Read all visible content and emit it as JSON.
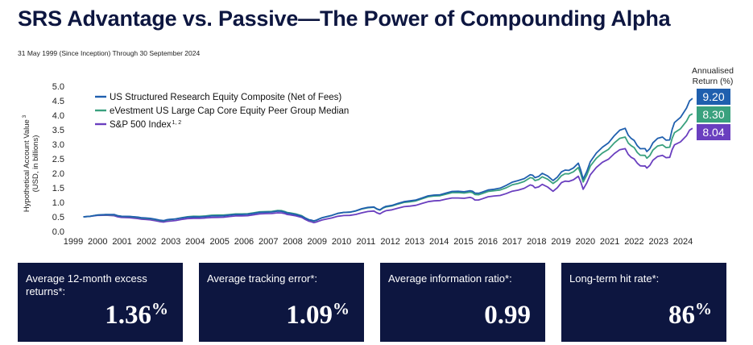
{
  "title": "SRS Advantage vs. Passive—The Power of Compounding Alpha",
  "subtitle": "31 May 1999 (Since Inception) Through 30 September 2024",
  "chart_data": {
    "type": "line",
    "ylabel_line1": "Hypothetical Account Value",
    "ylabel_sup": "3",
    "ylabel_line2": "(USD, in billions)",
    "ylim": [
      0.0,
      5.0
    ],
    "yticks": [
      "0.0",
      "0.5",
      "1.0",
      "1.5",
      "2.0",
      "2.5",
      "3.0",
      "3.5",
      "4.0",
      "4.5",
      "5.0"
    ],
    "xticks": [
      "1999",
      "2000",
      "2001",
      "2002",
      "2003",
      "2004",
      "2005",
      "2006",
      "2007",
      "2008",
      "2009",
      "2010",
      "2011",
      "2012",
      "2013",
      "2014",
      "2015",
      "2016",
      "2017",
      "2018",
      "2019",
      "2020",
      "2021",
      "2022",
      "2023",
      "2024"
    ],
    "grid": false,
    "legend_position": "top-left",
    "returns_header": "Annualised Return (%)",
    "returns_header_line1": "Annualised",
    "returns_header_line2": "Return (%)",
    "series": [
      {
        "name": "US Structured Research Equity Composite (Net of Fees)",
        "legend_sup": "",
        "color": "#1f5fae",
        "annualised_return": "9.20",
        "x": [
          1999.42,
          2000.0,
          2000.7,
          2001.0,
          2001.7,
          2002.0,
          2002.4,
          2002.75,
          2003.0,
          2003.5,
          2004.0,
          2004.5,
          2005.0,
          2005.5,
          2006.0,
          2006.5,
          2007.0,
          2007.5,
          2007.8,
          2008.0,
          2008.5,
          2008.8,
          2009.0,
          2009.2,
          2009.5,
          2010.0,
          2010.5,
          2011.0,
          2011.5,
          2011.75,
          2012.0,
          2012.5,
          2013.0,
          2013.5,
          2014.0,
          2014.5,
          2015.0,
          2015.5,
          2015.7,
          2016.0,
          2016.5,
          2017.0,
          2017.5,
          2018.0,
          2018.2,
          2018.5,
          2018.95,
          2019.3,
          2019.6,
          2020.0,
          2020.2,
          2020.5,
          2021.0,
          2021.5,
          2021.95,
          2022.2,
          2022.45,
          2022.7,
          2022.85,
          2023.1,
          2023.5,
          2023.8,
          2024.0,
          2024.5,
          2024.75
        ],
        "y": [
          0.5,
          0.56,
          0.58,
          0.52,
          0.49,
          0.46,
          0.42,
          0.37,
          0.41,
          0.46,
          0.5,
          0.51,
          0.53,
          0.56,
          0.58,
          0.62,
          0.66,
          0.7,
          0.66,
          0.62,
          0.52,
          0.4,
          0.36,
          0.42,
          0.5,
          0.62,
          0.66,
          0.78,
          0.84,
          0.74,
          0.86,
          0.96,
          1.05,
          1.15,
          1.25,
          1.32,
          1.38,
          1.4,
          1.32,
          1.35,
          1.45,
          1.58,
          1.75,
          1.95,
          1.85,
          2.0,
          1.75,
          2.05,
          2.1,
          2.35,
          1.8,
          2.4,
          2.9,
          3.3,
          3.55,
          3.2,
          2.95,
          2.85,
          2.75,
          3.05,
          3.25,
          3.15,
          3.75,
          4.25,
          4.58
        ]
      },
      {
        "name": "eVestment US Large Cap Core Equity Peer Group Median",
        "legend_sup": "",
        "color": "#3aa17e",
        "annualised_return": "8.30",
        "x": [
          1999.42,
          2000.0,
          2000.7,
          2001.0,
          2001.7,
          2002.0,
          2002.4,
          2002.75,
          2003.0,
          2003.5,
          2004.0,
          2004.5,
          2005.0,
          2005.5,
          2006.0,
          2006.5,
          2007.0,
          2007.5,
          2007.8,
          2008.0,
          2008.5,
          2008.8,
          2009.0,
          2009.2,
          2009.5,
          2010.0,
          2010.5,
          2011.0,
          2011.5,
          2011.75,
          2012.0,
          2012.5,
          2013.0,
          2013.5,
          2014.0,
          2014.5,
          2015.0,
          2015.5,
          2015.7,
          2016.0,
          2016.5,
          2017.0,
          2017.5,
          2018.0,
          2018.2,
          2018.5,
          2018.95,
          2019.3,
          2019.6,
          2020.0,
          2020.2,
          2020.5,
          2021.0,
          2021.5,
          2021.95,
          2022.2,
          2022.45,
          2022.7,
          2022.85,
          2023.1,
          2023.5,
          2023.8,
          2024.0,
          2024.5,
          2024.75
        ],
        "y": [
          0.5,
          0.56,
          0.57,
          0.52,
          0.48,
          0.45,
          0.41,
          0.36,
          0.4,
          0.47,
          0.52,
          0.53,
          0.56,
          0.58,
          0.6,
          0.64,
          0.68,
          0.72,
          0.68,
          0.64,
          0.54,
          0.4,
          0.35,
          0.42,
          0.5,
          0.62,
          0.66,
          0.77,
          0.83,
          0.73,
          0.84,
          0.94,
          1.02,
          1.12,
          1.22,
          1.28,
          1.34,
          1.35,
          1.27,
          1.3,
          1.4,
          1.5,
          1.65,
          1.85,
          1.75,
          1.88,
          1.65,
          1.92,
          1.98,
          2.2,
          1.7,
          2.25,
          2.7,
          3.05,
          3.25,
          2.95,
          2.72,
          2.62,
          2.52,
          2.8,
          2.98,
          2.9,
          3.4,
          3.8,
          4.05
        ]
      },
      {
        "name": "S&P 500 Index",
        "legend_sup": "1, 2",
        "color": "#6a3fbf",
        "annualised_return": "8.04",
        "x": [
          1999.42,
          2000.0,
          2000.7,
          2001.0,
          2001.7,
          2002.0,
          2002.4,
          2002.75,
          2003.0,
          2003.5,
          2004.0,
          2004.5,
          2005.0,
          2005.5,
          2006.0,
          2006.5,
          2007.0,
          2007.5,
          2007.8,
          2008.0,
          2008.5,
          2008.8,
          2009.0,
          2009.2,
          2009.5,
          2010.0,
          2010.5,
          2011.0,
          2011.5,
          2011.75,
          2012.0,
          2012.5,
          2013.0,
          2013.5,
          2014.0,
          2014.5,
          2015.0,
          2015.5,
          2015.7,
          2016.0,
          2016.5,
          2017.0,
          2017.5,
          2018.0,
          2018.2,
          2018.5,
          2018.95,
          2019.3,
          2019.6,
          2020.0,
          2020.2,
          2020.5,
          2021.0,
          2021.5,
          2021.95,
          2022.2,
          2022.45,
          2022.7,
          2022.85,
          2023.1,
          2023.5,
          2023.8,
          2024.0,
          2024.5,
          2024.75
        ],
        "y": [
          0.5,
          0.55,
          0.54,
          0.48,
          0.44,
          0.41,
          0.37,
          0.32,
          0.35,
          0.41,
          0.45,
          0.46,
          0.48,
          0.51,
          0.53,
          0.57,
          0.61,
          0.64,
          0.61,
          0.57,
          0.48,
          0.35,
          0.3,
          0.35,
          0.42,
          0.52,
          0.55,
          0.64,
          0.7,
          0.6,
          0.71,
          0.8,
          0.87,
          0.96,
          1.05,
          1.11,
          1.15,
          1.17,
          1.08,
          1.12,
          1.22,
          1.3,
          1.42,
          1.6,
          1.5,
          1.62,
          1.38,
          1.68,
          1.72,
          1.9,
          1.45,
          1.95,
          2.38,
          2.68,
          2.85,
          2.55,
          2.35,
          2.25,
          2.18,
          2.45,
          2.62,
          2.55,
          2.98,
          3.3,
          3.55
        ]
      }
    ]
  },
  "stats": [
    {
      "label": "Average 12-month excess returns*:",
      "value": "1.36",
      "unit": "%"
    },
    {
      "label": "Average tracking error*:",
      "value": "1.09",
      "unit": "%"
    },
    {
      "label": "Average information ratio*:",
      "value": "0.99",
      "unit": ""
    },
    {
      "label": "Long-term hit rate*:",
      "value": "86",
      "unit": "%"
    }
  ]
}
